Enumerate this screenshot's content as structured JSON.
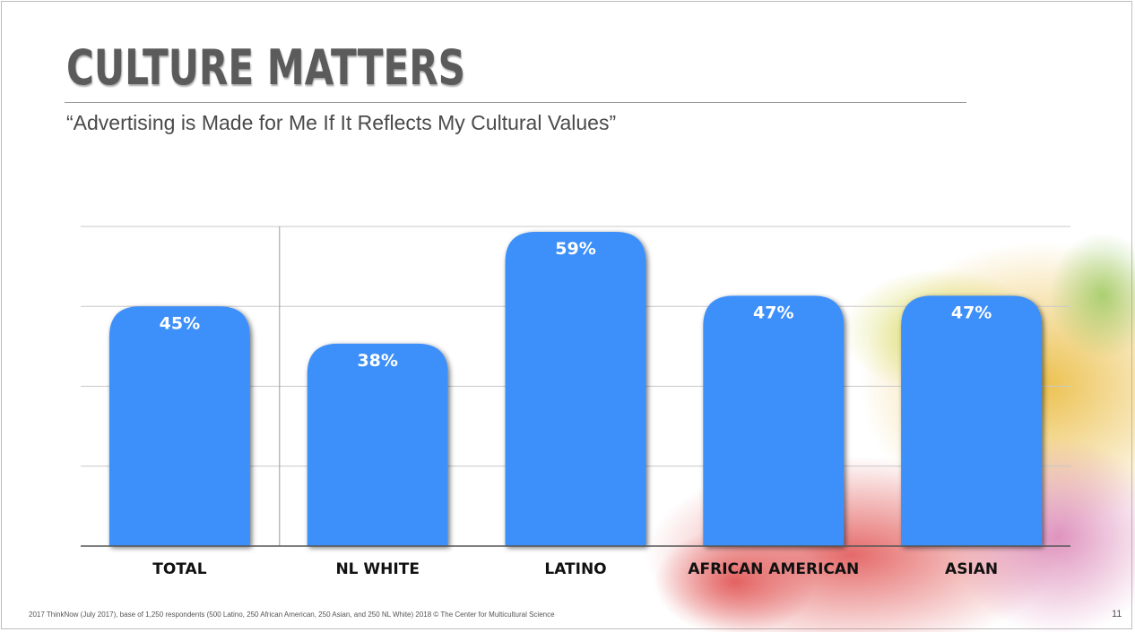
{
  "slide": {
    "title": "CULTURE MATTERS",
    "subtitle": "“Advertising is Made for Me If It Reflects My Cultural Values”",
    "footnote": "2017 ThinkNow (July 2017), base of 1,250 respondents (500 Latino, 250 African American, 250 Asian, and 250 NL White)    2018 © The Center for Multicultural Science",
    "page_number": "11"
  },
  "colors": {
    "bar": "#3d8ff9",
    "title": "#5b5b5b",
    "gridline": "#c8c8c8",
    "axis": "#555555"
  },
  "chart_data": {
    "type": "bar",
    "categories": [
      "TOTAL",
      "NL WHITE",
      "LATINO",
      "AFRICAN AMERICAN",
      "ASIAN"
    ],
    "values": [
      45,
      38,
      59,
      47,
      47
    ],
    "data_labels": [
      "45%",
      "38%",
      "59%",
      "47%",
      "47%"
    ],
    "ylim": [
      0,
      60
    ],
    "grid": true,
    "separator_after_category": "TOTAL"
  }
}
